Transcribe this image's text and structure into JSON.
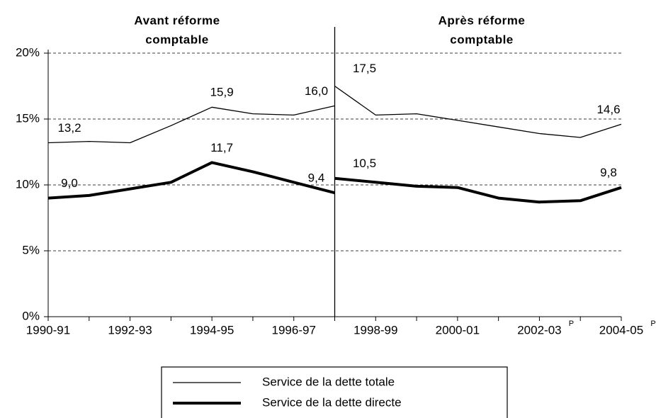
{
  "chart_data": {
    "type": "line",
    "section_titles": [
      [
        "Avant réforme",
        "comptable"
      ],
      [
        "Après réforme",
        "comptable"
      ]
    ],
    "categories": [
      "1990-91",
      null,
      "1992-93",
      null,
      "1994-95",
      null,
      "1996-97",
      null,
      "1998-99",
      null,
      "2000-01",
      null,
      "2002-03",
      null,
      "2004-05"
    ],
    "category_notes": [
      null,
      null,
      null,
      null,
      null,
      null,
      null,
      null,
      null,
      null,
      null,
      null,
      "P",
      null,
      "P"
    ],
    "ylim": [
      0,
      20
    ],
    "yticks": [
      {
        "value": 0,
        "label": "0%"
      },
      {
        "value": 5,
        "label": "5%"
      },
      {
        "value": 10,
        "label": "10%"
      },
      {
        "value": 15,
        "label": "15%"
      },
      {
        "value": 20,
        "label": "20%"
      }
    ],
    "grid": true,
    "series": [
      {
        "name": "Service de la dette totale",
        "color": "#000000",
        "width": 1.3,
        "segments": [
          {
            "values": [
              13.2,
              13.3,
              13.2,
              14.5,
              15.9,
              15.4,
              15.3,
              16.0
            ],
            "value_labels": [
              "13,2",
              null,
              null,
              null,
              "15,9",
              null,
              null,
              "16,0"
            ]
          },
          {
            "values": [
              17.5,
              15.3,
              15.4,
              14.9,
              14.4,
              13.9,
              13.6,
              14.6
            ],
            "value_labels": [
              "17,5",
              null,
              null,
              null,
              null,
              null,
              null,
              "14,6"
            ]
          }
        ]
      },
      {
        "name": "Service de la dette directe",
        "color": "#000000",
        "width": 4,
        "segments": [
          {
            "values": [
              9.0,
              9.2,
              9.7,
              10.2,
              11.7,
              11.0,
              10.2,
              9.4
            ],
            "value_labels": [
              "9,0",
              null,
              null,
              null,
              "11,7",
              null,
              null,
              "9,4"
            ]
          },
          {
            "values": [
              10.5,
              10.2,
              9.9,
              9.8,
              9.0,
              8.7,
              8.8,
              9.8
            ],
            "value_labels": [
              "10,5",
              null,
              null,
              null,
              null,
              null,
              null,
              "9,8"
            ]
          }
        ]
      }
    ]
  }
}
